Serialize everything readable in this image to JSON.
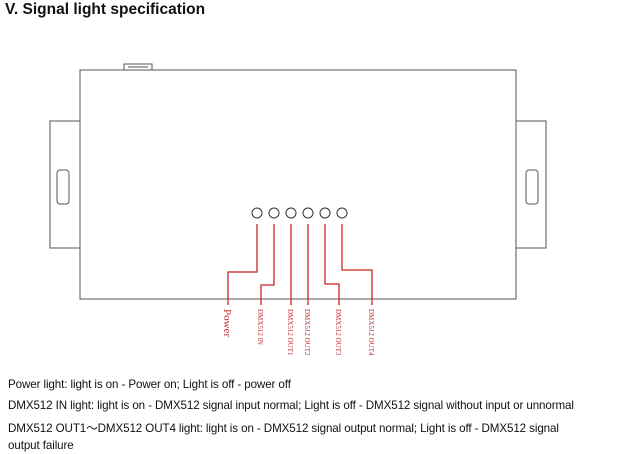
{
  "heading": "V. Signal light specification",
  "indicators": [
    {
      "label": "Power"
    },
    {
      "label": "DMX512 IN"
    },
    {
      "label": "DMX512 OUT1"
    },
    {
      "label": "DMX512 OUT2"
    },
    {
      "label": "DMX512 OUT3"
    },
    {
      "label": "DMX512 OUT4"
    }
  ],
  "colors": {
    "outline": "#555555",
    "leader": "#cc2222",
    "label": "#c03030"
  },
  "descriptions": [
    "Power light: light is on - Power on; Light is off - power off",
    "DMX512 IN light: light is on - DMX512 signal input normal; Light is off - DMX512 signal without input or unnormal",
    "DMX512 OUT1～DMX512 OUT4 light: light is on - DMX512 signal output normal; Light is off - DMX512 signal",
    "output failure"
  ]
}
